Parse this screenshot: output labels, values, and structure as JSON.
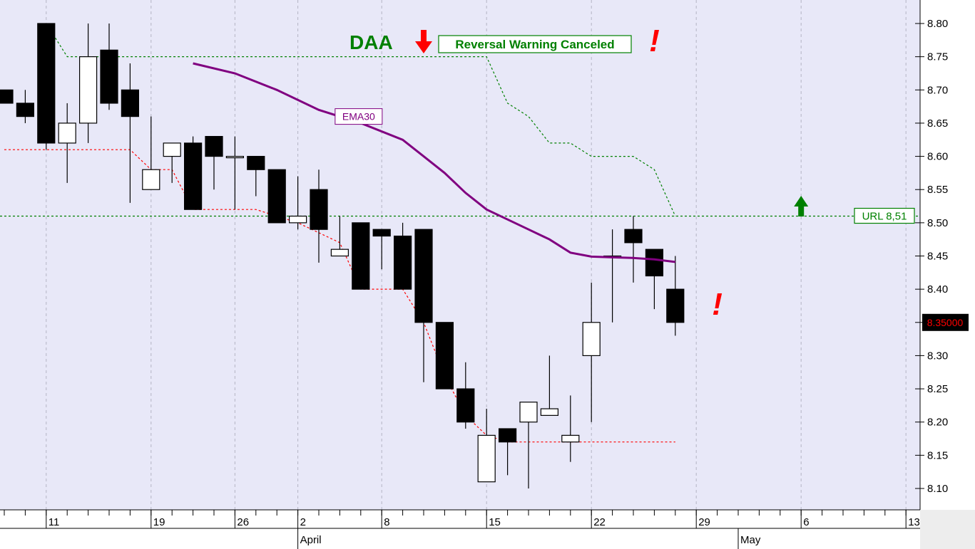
{
  "chart_data": {
    "type": "candlestick",
    "instrument_tag": "DAA",
    "y_axis": {
      "min": 8.1,
      "max": 8.8,
      "step": 0.05,
      "tick_labels": [
        "8.80",
        "8.75",
        "8.70",
        "8.65",
        "8.60",
        "8.55",
        "8.50",
        "8.45",
        "8.40",
        "8.35",
        "8.30",
        "8.25",
        "8.20",
        "8.15",
        "8.10"
      ]
    },
    "x_axis": {
      "day_labels": [
        {
          "text": "11",
          "day": 2
        },
        {
          "text": "19",
          "day": 7
        },
        {
          "text": "26",
          "day": 11
        },
        {
          "text": "2",
          "day": 14
        },
        {
          "text": "8",
          "day": 18
        },
        {
          "text": "15",
          "day": 23
        },
        {
          "text": "22",
          "day": 28
        },
        {
          "text": "29",
          "day": 33
        },
        {
          "text": "6",
          "day": 38
        },
        {
          "text": "13",
          "day": 43
        }
      ],
      "month_labels": [
        {
          "text": "April",
          "day": 14
        },
        {
          "text": "May",
          "day": 35
        }
      ]
    },
    "candles": [
      {
        "o": 8.7,
        "h": 8.7,
        "l": 8.68,
        "c": 8.68
      },
      {
        "o": 8.68,
        "h": 8.7,
        "l": 8.65,
        "c": 8.66
      },
      {
        "o": 8.8,
        "h": 8.8,
        "l": 8.61,
        "c": 8.62
      },
      {
        "o": 8.62,
        "h": 8.68,
        "l": 8.56,
        "c": 8.65
      },
      {
        "o": 8.65,
        "h": 8.8,
        "l": 8.62,
        "c": 8.75
      },
      {
        "o": 8.76,
        "h": 8.8,
        "l": 8.67,
        "c": 8.68
      },
      {
        "o": 8.7,
        "h": 8.74,
        "l": 8.53,
        "c": 8.66
      },
      {
        "o": 8.55,
        "h": 8.66,
        "l": 8.55,
        "c": 8.58
      },
      {
        "o": 8.6,
        "h": 8.62,
        "l": 8.56,
        "c": 8.62
      },
      {
        "o": 8.62,
        "h": 8.63,
        "l": 8.52,
        "c": 8.52
      },
      {
        "o": 8.63,
        "h": 8.63,
        "l": 8.55,
        "c": 8.6
      },
      {
        "o": 8.6,
        "h": 8.63,
        "l": 8.52,
        "c": 8.6
      },
      {
        "o": 8.6,
        "h": 8.6,
        "l": 8.54,
        "c": 8.58
      },
      {
        "o": 8.58,
        "h": 8.58,
        "l": 8.5,
        "c": 8.5
      },
      {
        "o": 8.5,
        "h": 8.57,
        "l": 8.49,
        "c": 8.51
      },
      {
        "o": 8.55,
        "h": 8.58,
        "l": 8.44,
        "c": 8.49
      },
      {
        "o": 8.45,
        "h": 8.51,
        "l": 8.45,
        "c": 8.46
      },
      {
        "o": 8.5,
        "h": 8.5,
        "l": 8.4,
        "c": 8.4
      },
      {
        "o": 8.49,
        "h": 8.49,
        "l": 8.43,
        "c": 8.48
      },
      {
        "o": 8.48,
        "h": 8.5,
        "l": 8.4,
        "c": 8.4
      },
      {
        "o": 8.49,
        "h": 8.49,
        "l": 8.26,
        "c": 8.35
      },
      {
        "o": 8.35,
        "h": 8.35,
        "l": 8.25,
        "c": 8.25
      },
      {
        "o": 8.25,
        "h": 8.29,
        "l": 8.19,
        "c": 8.2
      },
      {
        "o": 8.11,
        "h": 8.22,
        "l": 8.11,
        "c": 8.18
      },
      {
        "o": 8.19,
        "h": 8.19,
        "l": 8.12,
        "c": 8.17
      },
      {
        "o": 8.2,
        "h": 8.23,
        "l": 8.1,
        "c": 8.23
      },
      {
        "o": 8.21,
        "h": 8.3,
        "l": 8.21,
        "c": 8.22
      },
      {
        "o": 8.17,
        "h": 8.24,
        "l": 8.14,
        "c": 8.18
      },
      {
        "o": 8.3,
        "h": 8.41,
        "l": 8.2,
        "c": 8.35
      },
      {
        "o": 8.45,
        "h": 8.49,
        "l": 8.35,
        "c": 8.45
      },
      {
        "o": 8.49,
        "h": 8.51,
        "l": 8.41,
        "c": 8.47
      },
      {
        "o": 8.46,
        "h": 8.46,
        "l": 8.37,
        "c": 8.42
      },
      {
        "o": 8.4,
        "h": 8.45,
        "l": 8.33,
        "c": 8.35
      }
    ],
    "ema30": {
      "label": "EMA30",
      "values": [
        [
          9,
          8.74
        ],
        [
          11,
          8.725
        ],
        [
          13,
          8.7
        ],
        [
          15,
          8.67
        ],
        [
          17,
          8.65
        ],
        [
          19,
          8.625
        ],
        [
          20,
          8.6
        ],
        [
          21,
          8.575
        ],
        [
          22,
          8.545
        ],
        [
          23,
          8.52
        ],
        [
          24,
          8.505
        ],
        [
          25,
          8.49
        ],
        [
          26,
          8.475
        ],
        [
          27,
          8.455
        ],
        [
          28,
          8.449
        ],
        [
          29,
          8.448
        ],
        [
          30,
          8.447
        ],
        [
          31,
          8.445
        ],
        [
          32,
          8.441
        ]
      ]
    },
    "upper_stop": {
      "values": [
        [
          2,
          8.8
        ],
        [
          3,
          8.75
        ],
        [
          23,
          8.75
        ],
        [
          24,
          8.68
        ],
        [
          25,
          8.66
        ],
        [
          26,
          8.62
        ],
        [
          27,
          8.62
        ],
        [
          28,
          8.6
        ],
        [
          30,
          8.6
        ],
        [
          31,
          8.58
        ],
        [
          32,
          8.51
        ]
      ]
    },
    "lower_stop": {
      "values": [
        [
          0,
          8.61
        ],
        [
          6,
          8.61
        ],
        [
          7,
          8.58
        ],
        [
          8,
          8.58
        ],
        [
          9,
          8.52
        ],
        [
          12,
          8.52
        ],
        [
          14,
          8.5
        ],
        [
          16,
          8.47
        ],
        [
          17,
          8.4
        ],
        [
          19,
          8.4
        ],
        [
          20,
          8.35
        ],
        [
          21,
          8.27
        ],
        [
          22,
          8.21
        ],
        [
          23,
          8.18
        ],
        [
          24,
          8.17
        ],
        [
          32,
          8.17
        ]
      ]
    },
    "url_level": {
      "value": 8.51,
      "label": "URL 8,51"
    },
    "last_price": {
      "value": 8.35,
      "label": "8.35000"
    },
    "annotations": {
      "warning_text": "Reversal Warning Canceled",
      "exclamation": "!",
      "down_arrow_day": 20,
      "up_arrow_day": 38,
      "excl_top_day": 31,
      "excl_bottom_day": 34
    },
    "colors": {
      "background": "#E8E8F8",
      "ema": "#800080",
      "upper_stop": "#008000",
      "lower_stop": "#FF0000",
      "url_line": "#008000",
      "daa_text": "#008000",
      "arrow_down": "#FF0000",
      "arrow_up": "#008000",
      "exclamation": "#FF0000",
      "price_tag_bg": "#000000",
      "price_tag_text": "#FF0000"
    },
    "grid": true
  }
}
